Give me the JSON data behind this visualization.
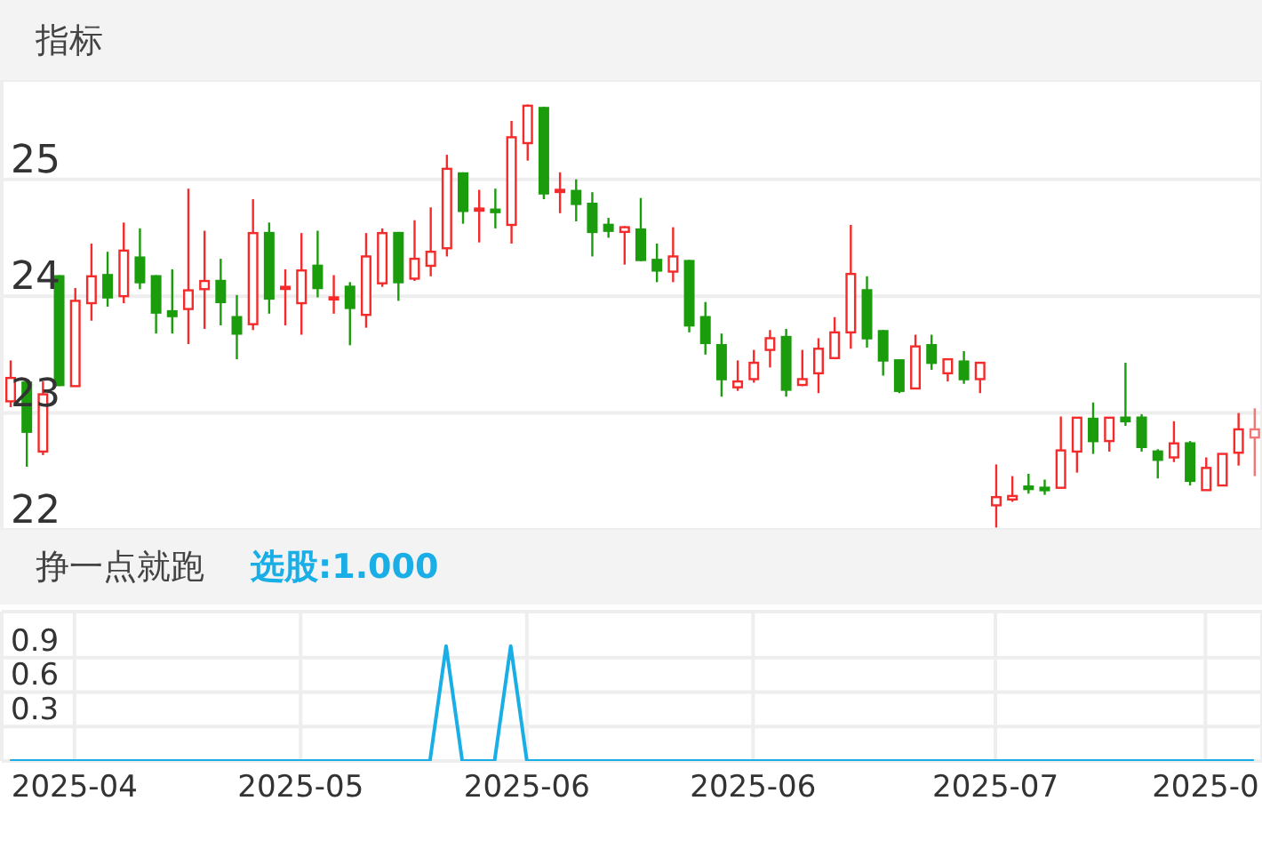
{
  "chart_data": [
    {
      "type": "candlestick",
      "title": "指标",
      "categories": [
        null,
        null,
        null,
        null,
        "2025-04",
        null,
        null,
        null,
        null,
        null,
        null,
        null,
        null,
        null,
        null,
        null,
        null,
        null,
        "2025-05",
        null,
        null,
        null,
        null,
        null,
        null,
        null,
        null,
        null,
        null,
        null,
        null,
        null,
        "2025-06",
        null,
        null,
        null,
        null,
        null,
        null,
        null,
        null,
        null,
        null,
        null,
        null,
        null,
        "2025-06",
        null,
        null,
        null,
        null,
        null,
        null,
        null,
        null,
        null,
        null,
        null,
        null,
        null,
        null,
        "2025-07",
        null,
        null,
        null,
        null,
        null,
        null,
        null,
        null,
        null,
        null,
        null,
        null,
        "2025-0",
        null,
        null,
        null
      ],
      "ohlc": [
        [
          23.1,
          23.45,
          23.05,
          23.3
        ],
        [
          23.27,
          23.27,
          22.54,
          22.83
        ],
        [
          22.67,
          23.27,
          22.64,
          23.16
        ],
        [
          24.18,
          24.18,
          23.23,
          23.23
        ],
        [
          23.23,
          24.07,
          23.23,
          23.96
        ],
        [
          23.94,
          24.45,
          23.79,
          24.17
        ],
        [
          24.19,
          24.38,
          23.91,
          23.98
        ],
        [
          24.0,
          24.63,
          23.94,
          24.39
        ],
        [
          24.34,
          24.58,
          24.06,
          24.11
        ],
        [
          24.18,
          24.18,
          23.68,
          23.85
        ],
        [
          23.88,
          24.23,
          23.68,
          23.82
        ],
        [
          23.89,
          24.92,
          23.59,
          24.05
        ],
        [
          24.06,
          24.56,
          23.72,
          24.13
        ],
        [
          24.14,
          24.32,
          23.75,
          23.94
        ],
        [
          23.83,
          24.01,
          23.46,
          23.67
        ],
        [
          23.76,
          24.83,
          23.71,
          24.54
        ],
        [
          24.55,
          24.63,
          23.85,
          23.97
        ],
        [
          24.07,
          24.23,
          23.75,
          24.08
        ],
        [
          23.94,
          24.54,
          23.67,
          24.22
        ],
        [
          24.27,
          24.56,
          23.99,
          24.06
        ],
        [
          23.98,
          24.18,
          23.85,
          23.99
        ],
        [
          24.09,
          24.12,
          23.58,
          23.89
        ],
        [
          23.84,
          24.54,
          23.73,
          24.34
        ],
        [
          24.11,
          24.58,
          24.08,
          24.54
        ],
        [
          24.55,
          24.55,
          23.96,
          24.11
        ],
        [
          24.15,
          24.65,
          24.13,
          24.32
        ],
        [
          24.26,
          24.76,
          24.17,
          24.38
        ],
        [
          24.41,
          25.21,
          24.34,
          25.09
        ],
        [
          25.06,
          25.06,
          24.62,
          24.72
        ],
        [
          24.74,
          24.91,
          24.46,
          24.75
        ],
        [
          24.75,
          24.92,
          24.58,
          24.71
        ],
        [
          24.61,
          25.5,
          24.45,
          25.36
        ],
        [
          25.31,
          25.64,
          25.16,
          25.63
        ],
        [
          25.62,
          25.62,
          24.83,
          24.87
        ],
        [
          24.9,
          25.06,
          24.71,
          24.91
        ],
        [
          24.91,
          25.0,
          24.64,
          24.78
        ],
        [
          24.8,
          24.89,
          24.34,
          24.54
        ],
        [
          24.62,
          24.67,
          24.5,
          24.55
        ],
        [
          24.55,
          24.6,
          24.27,
          24.59
        ],
        [
          24.58,
          24.84,
          24.3,
          24.3
        ],
        [
          24.32,
          24.45,
          24.12,
          24.21
        ],
        [
          24.21,
          24.59,
          24.12,
          24.34
        ],
        [
          24.31,
          24.31,
          23.69,
          23.74
        ],
        [
          23.83,
          23.95,
          23.5,
          23.59
        ],
        [
          23.59,
          23.68,
          23.14,
          23.28
        ],
        [
          23.22,
          23.45,
          23.19,
          23.27
        ],
        [
          23.29,
          23.54,
          23.26,
          23.43
        ],
        [
          23.54,
          23.71,
          23.39,
          23.64
        ],
        [
          23.66,
          23.72,
          23.14,
          23.19
        ],
        [
          23.24,
          23.54,
          23.23,
          23.29
        ],
        [
          23.34,
          23.64,
          23.17,
          23.55
        ],
        [
          23.47,
          23.82,
          23.46,
          23.69
        ],
        [
          23.69,
          24.61,
          23.55,
          24.19
        ],
        [
          24.06,
          24.17,
          23.56,
          23.63
        ],
        [
          23.71,
          23.71,
          23.32,
          23.44
        ],
        [
          23.46,
          23.46,
          23.17,
          23.18
        ],
        [
          23.21,
          23.67,
          23.21,
          23.57
        ],
        [
          23.59,
          23.67,
          23.37,
          23.42
        ],
        [
          23.34,
          23.46,
          23.27,
          23.46
        ],
        [
          23.45,
          23.53,
          23.25,
          23.28
        ],
        [
          23.29,
          23.43,
          23.17,
          23.43
        ],
        [
          22.21,
          22.56,
          22.02,
          22.28
        ],
        [
          22.26,
          22.46,
          22.24,
          22.29
        ],
        [
          22.38,
          22.48,
          22.31,
          22.34
        ],
        [
          22.37,
          22.43,
          22.3,
          22.33
        ],
        [
          22.36,
          22.97,
          22.36,
          22.68
        ],
        [
          22.67,
          22.96,
          22.49,
          22.96
        ],
        [
          22.96,
          23.09,
          22.65,
          22.75
        ],
        [
          22.76,
          22.96,
          22.67,
          22.96
        ],
        [
          22.97,
          23.43,
          22.89,
          22.92
        ],
        [
          22.97,
          22.99,
          22.67,
          22.7
        ],
        [
          22.68,
          22.69,
          22.44,
          22.59
        ],
        [
          22.62,
          22.93,
          22.58,
          22.74
        ],
        [
          22.75,
          22.76,
          22.38,
          22.41
        ],
        [
          22.34,
          22.62,
          22.34,
          22.53
        ],
        [
          22.38,
          22.65,
          22.38,
          22.65
        ],
        [
          22.66,
          23.0,
          22.55,
          22.86
        ],
        [
          22.79,
          23.04,
          22.46,
          22.86
        ]
      ],
      "colors": [
        "#f52a2a",
        "#1b9c0d",
        "#f52a2a",
        "#1b9c0d",
        "#f52a2a",
        "#f52a2a",
        "#1b9c0d",
        "#f52a2a",
        "#1b9c0d",
        "#1b9c0d",
        "#1b9c0d",
        "#f52a2a",
        "#f52a2a",
        "#1b9c0d",
        "#1b9c0d",
        "#f52a2a",
        "#1b9c0d",
        "#f52a2a",
        "#f52a2a",
        "#1b9c0d",
        "#f52a2a",
        "#1b9c0d",
        "#f52a2a",
        "#f52a2a",
        "#1b9c0d",
        "#f52a2a",
        "#f52a2a",
        "#f52a2a",
        "#1b9c0d",
        "#f52a2a",
        "#1b9c0d",
        "#f52a2a",
        "#f52a2a",
        "#1b9c0d",
        "#f52a2a",
        "#1b9c0d",
        "#1b9c0d",
        "#1b9c0d",
        "#f52a2a",
        "#1b9c0d",
        "#1b9c0d",
        "#f52a2a",
        "#1b9c0d",
        "#1b9c0d",
        "#1b9c0d",
        "#f52a2a",
        "#f52a2a",
        "#f52a2a",
        "#1b9c0d",
        "#f52a2a",
        "#f52a2a",
        "#f52a2a",
        "#f52a2a",
        "#1b9c0d",
        "#1b9c0d",
        "#1b9c0d",
        "#f52a2a",
        "#1b9c0d",
        "#f52a2a",
        "#1b9c0d",
        "#f52a2a",
        "#f52a2a",
        "#f52a2a",
        "#1b9c0d",
        "#1b9c0d",
        "#f52a2a",
        "#f52a2a",
        "#1b9c0d",
        "#f52a2a",
        "#1b9c0d",
        "#1b9c0d",
        "#1b9c0d",
        "#f52a2a",
        "#1b9c0d",
        "#f52a2a",
        "#f52a2a",
        "#f52a2a",
        "#f07878"
      ],
      "ylim": [
        22,
        25.85
      ],
      "yticks": [
        22,
        23,
        24,
        25
      ],
      "grid": true,
      "tick_labels": "y"
    },
    {
      "type": "line",
      "title": "挣一点就跑",
      "annotations": [
        "选股:1.000"
      ],
      "categories": [
        null,
        null,
        null,
        null,
        "2025-04",
        null,
        null,
        null,
        null,
        null,
        null,
        null,
        null,
        null,
        null,
        null,
        null,
        null,
        "2025-05",
        null,
        null,
        null,
        null,
        null,
        null,
        null,
        null,
        null,
        null,
        null,
        null,
        null,
        "2025-06",
        null,
        null,
        null,
        null,
        null,
        null,
        null,
        null,
        null,
        null,
        null,
        null,
        null,
        "2025-06",
        null,
        null,
        null,
        null,
        null,
        null,
        null,
        null,
        null,
        null,
        null,
        null,
        null,
        null,
        "2025-07",
        null,
        null,
        null,
        null,
        null,
        null,
        null,
        null,
        null,
        null,
        null,
        null,
        "2025-0",
        null,
        null,
        null
      ],
      "series": [
        {
          "color": "#1aaee6",
          "values": [
            0,
            0,
            0,
            0,
            0,
            0,
            0,
            0,
            0,
            0,
            0,
            0,
            0,
            0,
            0,
            0,
            0,
            0,
            0,
            0,
            0,
            0,
            0,
            0,
            0,
            0,
            0,
            1,
            0,
            0,
            0,
            1,
            0,
            0,
            0,
            0,
            0,
            0,
            0,
            0,
            0,
            0,
            0,
            0,
            0,
            0,
            0,
            0,
            0,
            0,
            0,
            0,
            0,
            0,
            0,
            0,
            0,
            0,
            0,
            0,
            0,
            0,
            0,
            0,
            0,
            0,
            0,
            0,
            0,
            0,
            0,
            0,
            0,
            0,
            0,
            0,
            0,
            0
          ]
        }
      ],
      "ylim": [
        0,
        1.3
      ],
      "yticks": [
        0.3,
        0.6,
        0.9
      ],
      "grid": true,
      "marker": "none"
    }
  ]
}
